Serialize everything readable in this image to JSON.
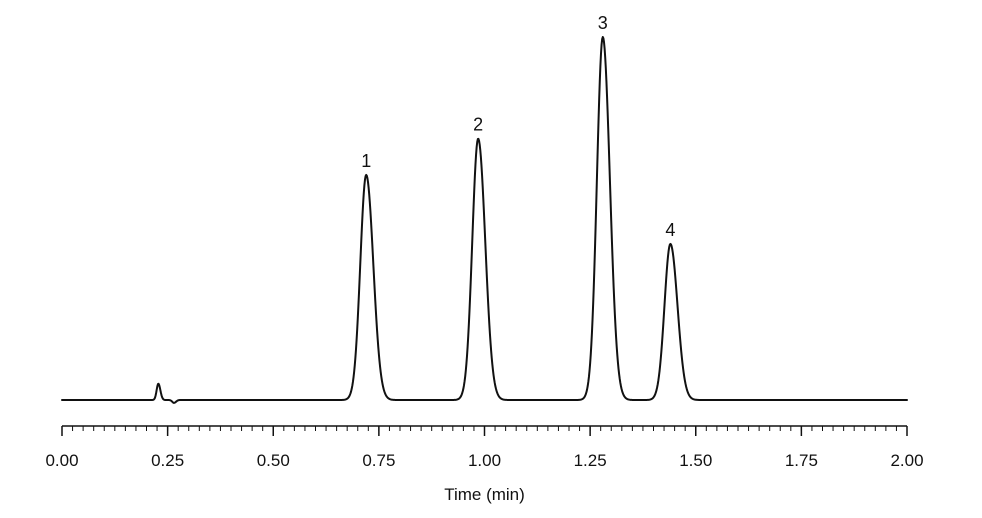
{
  "chart_data": {
    "type": "line",
    "title": "",
    "xlabel": "Time (min)",
    "ylabel": "",
    "xlim": [
      0,
      2
    ],
    "x_ticks": [
      "0.00",
      "0.25",
      "0.50",
      "0.75",
      "1.00",
      "1.25",
      "1.50",
      "1.75",
      "2.00"
    ],
    "x_minor_tick_step": 0.025,
    "grid": false,
    "legend": "none",
    "line_color": "#111111",
    "baseline_relative": 0,
    "peaks": [
      {
        "label": "1",
        "retention_time": 0.72,
        "relative_height": 0.62
      },
      {
        "label": "2",
        "retention_time": 0.985,
        "relative_height": 0.72
      },
      {
        "label": "3",
        "retention_time": 1.28,
        "relative_height": 1.0
      },
      {
        "label": "4",
        "retention_time": 1.44,
        "relative_height": 0.43
      }
    ],
    "minor_features": [
      {
        "retention_time": 0.228,
        "relative_height": 0.045
      },
      {
        "retention_time": 0.265,
        "relative_height": -0.008
      }
    ]
  }
}
